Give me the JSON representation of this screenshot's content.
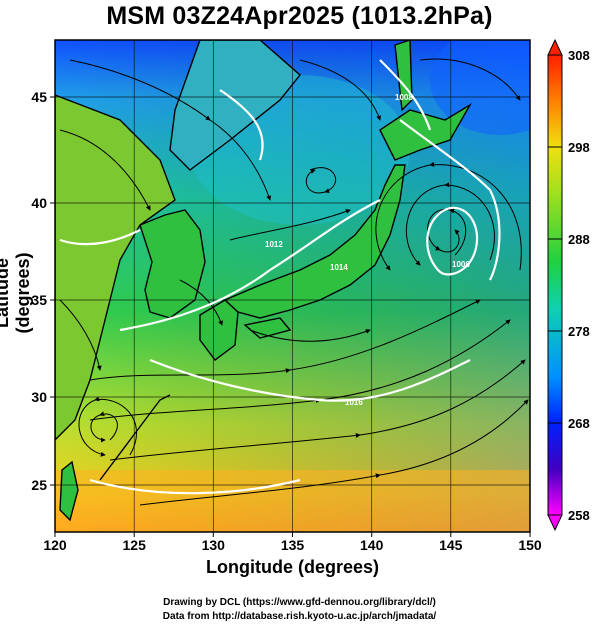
{
  "title": "MSM 03Z24Apr2025 (1013.2hPa)",
  "axes": {
    "xlabel": "Longitude (degrees)",
    "ylabel": "Latitude  (degrees)",
    "xlim": [
      120,
      150
    ],
    "ylim": [
      22.4,
      47.6
    ],
    "xticks": [
      "120",
      "125",
      "130",
      "135",
      "140",
      "145",
      "150"
    ],
    "yticks": [
      "25",
      "30",
      "35",
      "40",
      "45"
    ],
    "grid": true
  },
  "colorbar": {
    "min": 258,
    "max": 308,
    "ticks": [
      "308",
      "298",
      "288",
      "278",
      "268",
      "258"
    ]
  },
  "isobars": [
    "1006",
    "1008",
    "1012",
    "1014",
    "1016"
  ],
  "credits": {
    "line1": "Drawing by DCL (https://www.gfd-dennou.org/library/dcl/)",
    "line2": "Data from http://database.rish.kyoto-u.ac.jp/arch/jmadata/"
  },
  "colors": {
    "cold": "#2040e0",
    "mid": "#10c860",
    "warm": "#ffb000",
    "isobar": "#ffffff",
    "land": "#000000"
  }
}
